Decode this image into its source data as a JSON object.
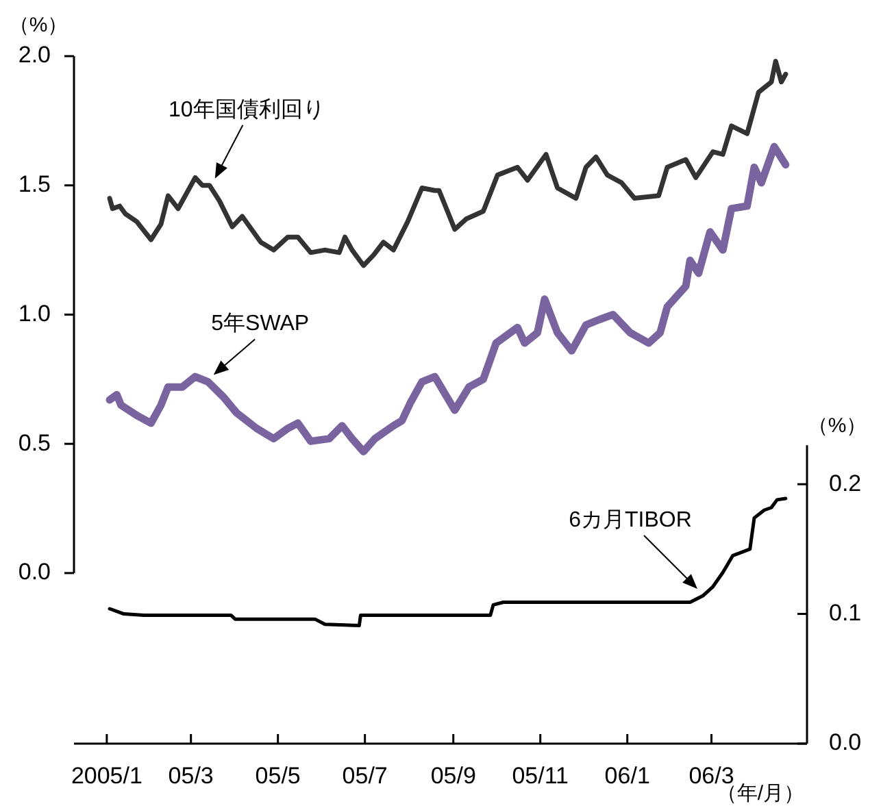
{
  "chart_data": {
    "type": "line",
    "xlabel": "（年/月）",
    "ylabel": "（%）",
    "y2label": "（%）",
    "marker": "none",
    "xlim": [
      "2004-12-09",
      "2006-05-07"
    ],
    "xticks": [
      {
        "value": "2005-01-01",
        "label": "2005/1"
      },
      {
        "value": "2005-03-01",
        "label": "05/3"
      },
      {
        "value": "2005-05-01",
        "label": "05/5"
      },
      {
        "value": "2005-07-01",
        "label": "05/7"
      },
      {
        "value": "2005-09-01",
        "label": "05/9"
      },
      {
        "value": "2005-11-01",
        "label": "05/11"
      },
      {
        "value": "2006-01-01",
        "label": "06/1"
      },
      {
        "value": "2006-03-01",
        "label": "06/3"
      }
    ],
    "ylim": [
      -0.66,
      2.0
    ],
    "yticks": [
      {
        "value": 0,
        "label": "0.0"
      },
      0.5,
      {
        "value": 1,
        "label": "1.0"
      },
      1.5,
      {
        "value": 2,
        "label": "2.0"
      }
    ],
    "y2lim": [
      0,
      0.53
    ],
    "y2ticks": [
      {
        "value": 0,
        "label": "0.0"
      },
      0.1,
      0.2
    ],
    "series": [
      {
        "name": "10年国債利回り",
        "color": "#333333",
        "x": [
          "2005-01-03",
          "2005-01-05",
          "2005-01-10",
          "2005-01-14",
          "2005-01-22",
          "2005-02-01",
          "2005-02-08",
          "2005-02-13",
          "2005-02-20",
          "2005-03-04",
          "2005-03-09",
          "2005-03-14",
          "2005-03-21",
          "2005-03-30",
          "2005-04-06",
          "2005-04-19",
          "2005-04-28",
          "2005-05-08",
          "2005-05-15",
          "2005-05-24",
          "2005-06-03",
          "2005-06-13",
          "2005-06-17",
          "2005-06-22",
          "2005-06-30",
          "2005-07-07",
          "2005-07-14",
          "2005-07-21",
          "2005-07-31",
          "2005-08-10",
          "2005-08-19",
          "2005-08-22",
          "2005-09-02",
          "2005-09-10",
          "2005-09-22",
          "2005-10-02",
          "2005-10-16",
          "2005-10-23",
          "2005-11-05",
          "2005-11-13",
          "2005-11-26",
          "2005-12-03",
          "2005-12-10",
          "2005-12-18",
          "2005-12-28",
          "2006-01-06",
          "2006-01-23",
          "2006-01-29",
          "2006-02-11",
          "2006-02-18",
          "2006-03-02",
          "2006-03-09",
          "2006-03-15",
          "2006-03-26",
          "2006-04-03",
          "2006-04-12",
          "2006-04-15",
          "2006-04-19",
          "2006-04-22"
        ],
        "values": [
          1.45,
          1.41,
          1.42,
          1.39,
          1.36,
          1.29,
          1.35,
          1.46,
          1.41,
          1.53,
          1.5,
          1.5,
          1.44,
          1.34,
          1.38,
          1.28,
          1.25,
          1.3,
          1.3,
          1.24,
          1.25,
          1.24,
          1.3,
          1.25,
          1.19,
          1.23,
          1.28,
          1.25,
          1.36,
          1.49,
          1.48,
          1.48,
          1.33,
          1.37,
          1.4,
          1.54,
          1.57,
          1.52,
          1.62,
          1.49,
          1.45,
          1.57,
          1.61,
          1.54,
          1.51,
          1.45,
          1.46,
          1.57,
          1.6,
          1.53,
          1.63,
          1.62,
          1.73,
          1.7,
          1.86,
          1.9,
          1.98,
          1.9,
          1.93
        ]
      },
      {
        "name": "5年SWAP",
        "color": "#7a64a0",
        "x": [
          "2005-01-03",
          "2005-01-08",
          "2005-01-11",
          "2005-01-22",
          "2005-02-01",
          "2005-02-08",
          "2005-02-13",
          "2005-02-23",
          "2005-03-04",
          "2005-03-13",
          "2005-03-24",
          "2005-04-02",
          "2005-04-16",
          "2005-04-28",
          "2005-05-08",
          "2005-05-15",
          "2005-05-24",
          "2005-06-06",
          "2005-06-15",
          "2005-06-22",
          "2005-06-30",
          "2005-07-08",
          "2005-07-21",
          "2005-07-27",
          "2005-08-02",
          "2005-08-10",
          "2005-08-19",
          "2005-09-02",
          "2005-09-12",
          "2005-09-22",
          "2005-10-01",
          "2005-10-16",
          "2005-10-21",
          "2005-10-30",
          "2005-11-04",
          "2005-11-13",
          "2005-11-23",
          "2005-12-03",
          "2005-12-12",
          "2005-12-22",
          "2006-01-03",
          "2006-01-16",
          "2006-01-24",
          "2006-01-29",
          "2006-02-11",
          "2006-02-14",
          "2006-02-20",
          "2006-02-28",
          "2006-03-09",
          "2006-03-15",
          "2006-03-26",
          "2006-03-31",
          "2006-04-05",
          "2006-04-14",
          "2006-04-22"
        ],
        "values": [
          0.67,
          0.69,
          0.65,
          0.61,
          0.58,
          0.65,
          0.72,
          0.72,
          0.76,
          0.74,
          0.68,
          0.62,
          0.56,
          0.52,
          0.56,
          0.58,
          0.51,
          0.52,
          0.57,
          0.52,
          0.47,
          0.52,
          0.57,
          0.59,
          0.66,
          0.74,
          0.76,
          0.63,
          0.72,
          0.75,
          0.89,
          0.95,
          0.89,
          0.93,
          1.06,
          0.93,
          0.86,
          0.96,
          0.98,
          1.0,
          0.93,
          0.89,
          0.93,
          1.03,
          1.11,
          1.21,
          1.16,
          1.32,
          1.25,
          1.41,
          1.42,
          1.57,
          1.51,
          1.65,
          1.58
        ]
      },
      {
        "name": "6カ月TIBOR",
        "color": "#000000",
        "axis": "y2",
        "x": [
          "2005-01-03",
          "2005-01-13",
          "2005-01-27",
          "2005-03-29",
          "2005-04-01",
          "2005-05-27",
          "2005-06-03",
          "2005-06-27",
          "2005-06-28",
          "2005-09-27",
          "2005-09-29",
          "2005-10-06",
          "2006-02-14",
          "2006-02-23",
          "2006-03-02",
          "2006-03-09",
          "2006-03-16",
          "2006-03-28",
          "2006-03-31",
          "2006-04-07",
          "2006-04-12",
          "2006-04-16",
          "2006-04-22"
        ],
        "values": [
          0.104,
          0.1,
          0.099,
          0.099,
          0.096,
          0.096,
          0.092,
          0.091,
          0.099,
          0.099,
          0.107,
          0.109,
          0.109,
          0.114,
          0.121,
          0.132,
          0.145,
          0.15,
          0.174,
          0.18,
          0.182,
          0.188,
          0.189
        ]
      }
    ]
  }
}
